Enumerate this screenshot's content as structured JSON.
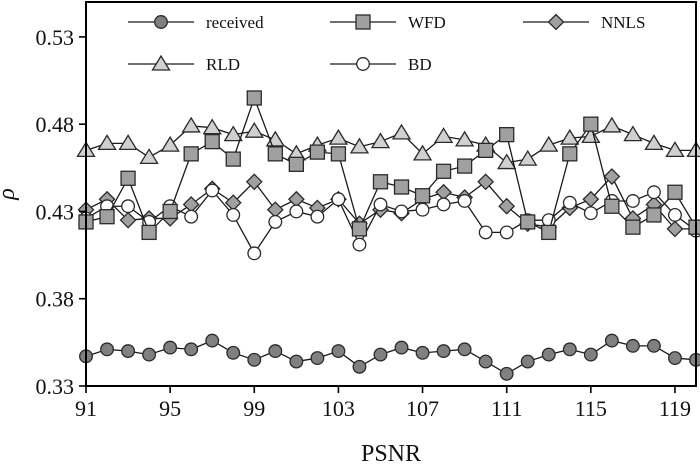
{
  "chart_data": {
    "type": "line",
    "title": "",
    "xlabel": "PSNR",
    "ylabel": "ρ",
    "xlim": [
      91,
      120
    ],
    "ylim": [
      0.33,
      0.55
    ],
    "xticks": [
      91,
      95,
      99,
      103,
      107,
      111,
      115,
      119
    ],
    "xtick_labels": [
      "91",
      "95",
      "99",
      "103",
      "107",
      "111",
      "115",
      "119"
    ],
    "yticks": [
      0.33,
      0.38,
      0.43,
      0.48,
      0.53
    ],
    "ytick_labels": [
      "0.33",
      "0.38",
      "0.43",
      "0.48",
      "0.53"
    ],
    "grid": false,
    "legend_position": "top, inside plot, two rows",
    "x": [
      91,
      92,
      93,
      94,
      95,
      96,
      97,
      98,
      99,
      100,
      101,
      102,
      103,
      104,
      105,
      106,
      107,
      108,
      109,
      110,
      111,
      112,
      113,
      114,
      115,
      116,
      117,
      118,
      119,
      120
    ],
    "series": [
      {
        "name": "received",
        "marker": "circle",
        "fill": "#808080",
        "values": [
          0.347,
          0.351,
          0.35,
          0.348,
          0.352,
          0.351,
          0.356,
          0.349,
          0.345,
          0.35,
          0.344,
          0.346,
          0.35,
          0.341,
          0.348,
          0.352,
          0.349,
          0.35,
          0.351,
          0.344,
          0.337,
          0.344,
          0.348,
          0.351,
          0.348,
          0.356,
          0.353,
          0.353,
          0.346,
          0.345
        ]
      },
      {
        "name": "WFD",
        "marker": "square",
        "fill": "#a0a0a0",
        "values": [
          0.424,
          0.427,
          0.449,
          0.418,
          0.43,
          0.463,
          0.47,
          0.46,
          0.495,
          0.463,
          0.457,
          0.464,
          0.463,
          0.42,
          0.447,
          0.444,
          0.439,
          0.453,
          0.456,
          0.465,
          0.474,
          0.424,
          0.418,
          0.463,
          0.48,
          0.433,
          0.421,
          0.428,
          0.441,
          0.421
        ]
      },
      {
        "name": "NNLS",
        "marker": "diamond",
        "fill": "#a0a0a0",
        "values": [
          0.431,
          0.437,
          0.425,
          0.426,
          0.426,
          0.434,
          0.443,
          0.435,
          0.447,
          0.431,
          0.437,
          0.432,
          0.437,
          0.423,
          0.431,
          0.429,
          0.437,
          0.441,
          0.438,
          0.447,
          0.433,
          0.423,
          0.421,
          0.432,
          0.437,
          0.45,
          0.426,
          0.434,
          0.42,
          0.42
        ]
      },
      {
        "name": "RLD",
        "marker": "triangle",
        "fill": "#d0d0d0",
        "values": [
          0.465,
          0.469,
          0.469,
          0.461,
          0.468,
          0.479,
          0.478,
          0.474,
          0.476,
          0.471,
          0.463,
          0.468,
          0.472,
          0.467,
          0.47,
          0.475,
          0.463,
          0.473,
          0.471,
          0.468,
          0.458,
          0.46,
          0.468,
          0.472,
          0.473,
          0.479,
          0.474,
          0.469,
          0.465,
          0.465
        ]
      },
      {
        "name": "BD",
        "marker": "circle",
        "fill": "#ffffff",
        "values": [
          0.426,
          0.433,
          0.433,
          0.424,
          0.433,
          0.427,
          0.442,
          0.428,
          0.406,
          0.424,
          0.43,
          0.427,
          0.437,
          0.411,
          0.434,
          0.43,
          0.431,
          0.434,
          0.436,
          0.418,
          0.418,
          0.425,
          0.425,
          0.435,
          0.429,
          0.436,
          0.436,
          0.441,
          0.428,
          0.419
        ]
      }
    ]
  }
}
